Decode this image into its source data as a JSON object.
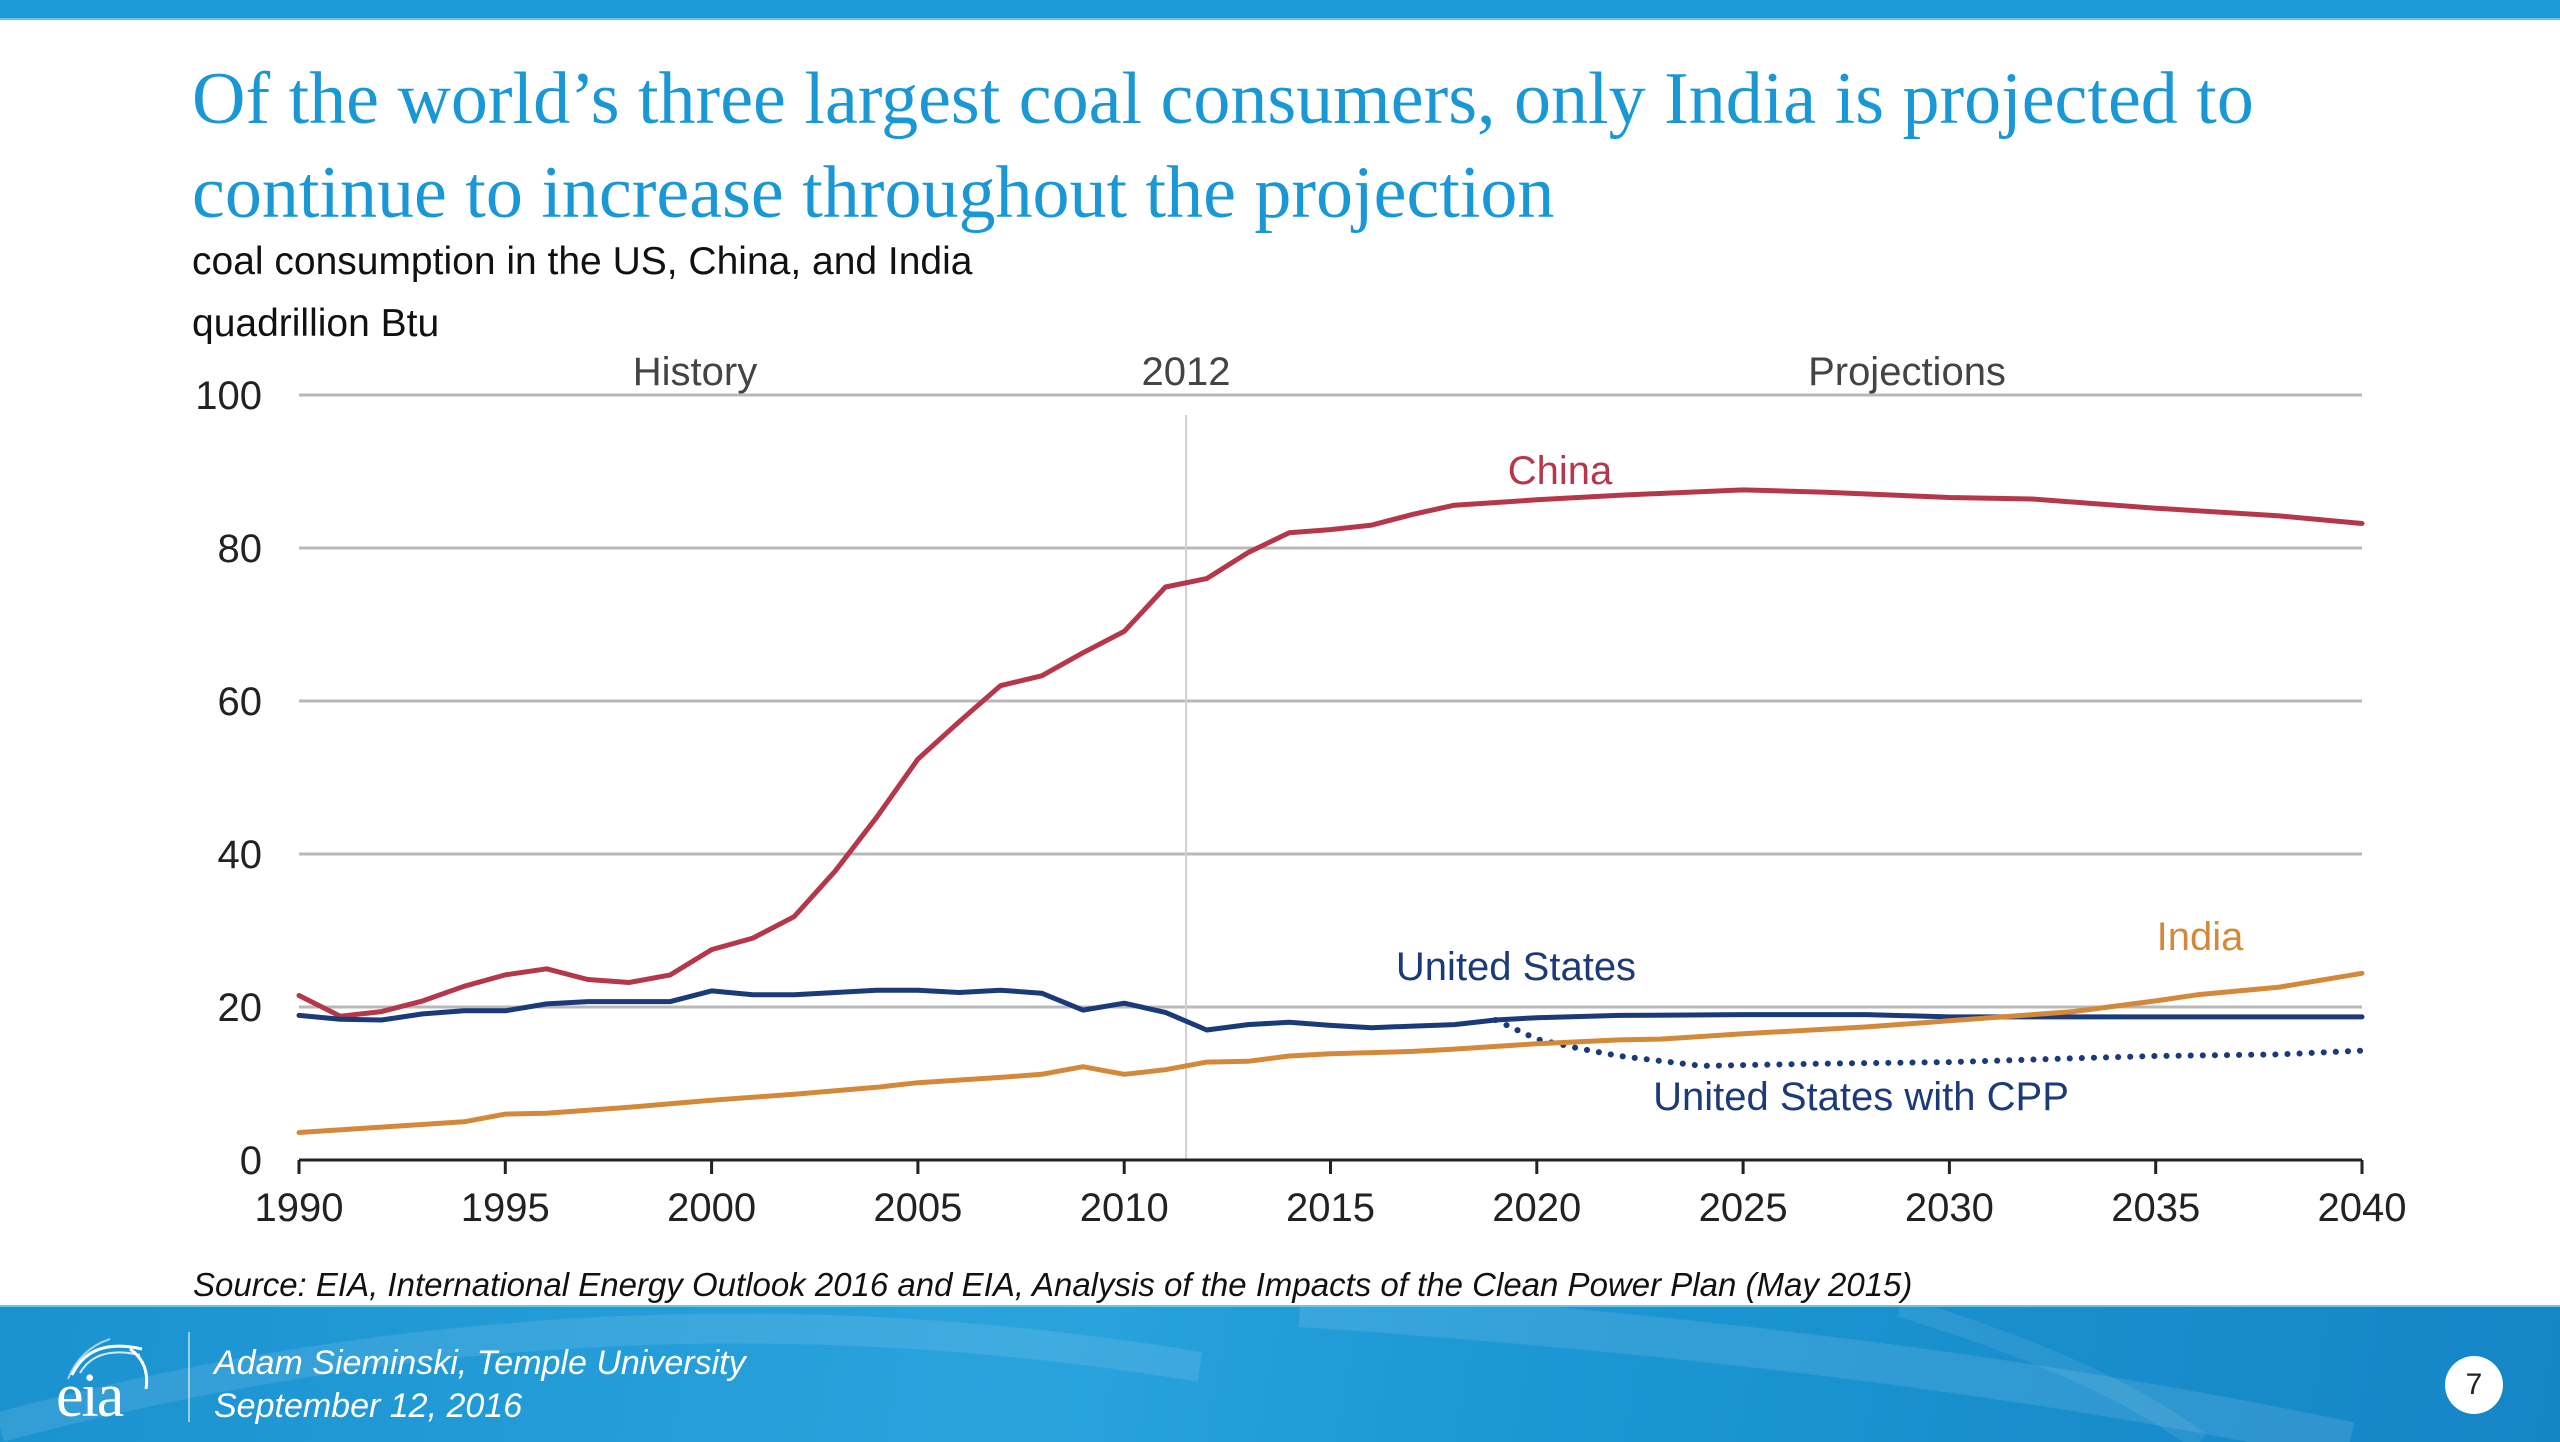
{
  "slide": {
    "title": "Of the world’s three largest coal consumers, only India is projected to continue to increase throughout the projection",
    "subtitle": "coal consumption in the US, China, and India",
    "units": "quadrillion Btu",
    "source": "Source:  EIA, International Energy Outlook 2016 and EIA, Analysis of the Impacts of the Clean Power Plan (May 2015)",
    "footer": {
      "logo_text": "eia",
      "presenter": "Adam Sieminski, Temple University",
      "date": "September 12, 2016",
      "page_number": "7"
    },
    "colors": {
      "accent": "#1a97d5",
      "china": "#b5384a",
      "united_states": "#1b3a7a",
      "india": "#d4893a"
    }
  },
  "chart_data": {
    "type": "line",
    "title": "coal consumption in the US, China, and India",
    "ylabel": "quadrillion Btu",
    "xlabel": "",
    "xlim": [
      1990,
      2040
    ],
    "ylim": [
      0,
      100
    ],
    "x_ticks": [
      "1990",
      "1995",
      "2000",
      "2005",
      "2010",
      "2015",
      "2020",
      "2025",
      "2030",
      "2035",
      "2040"
    ],
    "y_ticks": [
      "0",
      "20",
      "40",
      "60",
      "80",
      "100"
    ],
    "grid": "horizontal",
    "divider": {
      "year": 2011.5,
      "label": "2012"
    },
    "region_labels": {
      "history": "History",
      "projections": "Projections"
    },
    "series": [
      {
        "name": "China",
        "style": "solid",
        "points": [
          [
            1990,
            21.5
          ],
          [
            1991,
            18.8
          ],
          [
            1992,
            19.4
          ],
          [
            1993,
            20.8
          ],
          [
            1994,
            22.7
          ],
          [
            1995,
            24.2
          ],
          [
            1996,
            25.0
          ],
          [
            1997,
            23.6
          ],
          [
            1998,
            23.2
          ],
          [
            1999,
            24.2
          ],
          [
            2000,
            27.5
          ],
          [
            2001,
            29.0
          ],
          [
            2002,
            31.8
          ],
          [
            2003,
            37.8
          ],
          [
            2004,
            44.8
          ],
          [
            2005,
            52.4
          ],
          [
            2006,
            57.3
          ],
          [
            2007,
            62.0
          ],
          [
            2008,
            63.3
          ],
          [
            2009,
            66.3
          ],
          [
            2010,
            69.1
          ],
          [
            2011,
            74.9
          ],
          [
            2012,
            76.0
          ],
          [
            2013,
            79.4
          ],
          [
            2014,
            82.0
          ],
          [
            2015,
            82.4
          ],
          [
            2016,
            83.0
          ],
          [
            2017,
            84.4
          ],
          [
            2018,
            85.6
          ],
          [
            2020,
            86.3
          ],
          [
            2022,
            86.9
          ],
          [
            2025,
            87.6
          ],
          [
            2027,
            87.3
          ],
          [
            2030,
            86.6
          ],
          [
            2032,
            86.4
          ],
          [
            2035,
            85.2
          ],
          [
            2038,
            84.2
          ],
          [
            2040,
            83.2
          ]
        ]
      },
      {
        "name": "United States",
        "style": "solid",
        "points": [
          [
            1990,
            18.9
          ],
          [
            1991,
            18.4
          ],
          [
            1992,
            18.3
          ],
          [
            1993,
            19.1
          ],
          [
            1994,
            19.5
          ],
          [
            1995,
            19.5
          ],
          [
            1996,
            20.4
          ],
          [
            1997,
            20.7
          ],
          [
            1998,
            20.7
          ],
          [
            1999,
            20.7
          ],
          [
            2000,
            22.1
          ],
          [
            2001,
            21.6
          ],
          [
            2002,
            21.6
          ],
          [
            2003,
            21.9
          ],
          [
            2004,
            22.2
          ],
          [
            2005,
            22.2
          ],
          [
            2006,
            21.9
          ],
          [
            2007,
            22.2
          ],
          [
            2008,
            21.8
          ],
          [
            2009,
            19.6
          ],
          [
            2010,
            20.5
          ],
          [
            2011,
            19.3
          ],
          [
            2012,
            17.0
          ],
          [
            2013,
            17.7
          ],
          [
            2014,
            18.0
          ],
          [
            2015,
            17.6
          ],
          [
            2016,
            17.3
          ],
          [
            2017,
            17.5
          ],
          [
            2018,
            17.7
          ],
          [
            2019,
            18.3
          ],
          [
            2020,
            18.6
          ],
          [
            2022,
            18.9
          ],
          [
            2025,
            19.0
          ],
          [
            2028,
            19.0
          ],
          [
            2030,
            18.7
          ],
          [
            2035,
            18.7
          ],
          [
            2040,
            18.7
          ]
        ]
      },
      {
        "name": "United States with CPP",
        "style": "dotted",
        "points": [
          [
            2019,
            18.3
          ],
          [
            2020,
            15.8
          ],
          [
            2021,
            14.6
          ],
          [
            2022,
            13.6
          ],
          [
            2024,
            12.3
          ],
          [
            2025,
            12.4
          ],
          [
            2027,
            12.6
          ],
          [
            2030,
            12.8
          ],
          [
            2033,
            13.3
          ],
          [
            2035,
            13.6
          ],
          [
            2038,
            13.8
          ],
          [
            2040,
            14.3
          ]
        ]
      },
      {
        "name": "India",
        "style": "solid",
        "points": [
          [
            1990,
            3.6
          ],
          [
            1992,
            4.3
          ],
          [
            1994,
            5.0
          ],
          [
            1995,
            6.0
          ],
          [
            1996,
            6.1
          ],
          [
            1998,
            6.9
          ],
          [
            2000,
            7.8
          ],
          [
            2002,
            8.6
          ],
          [
            2004,
            9.5
          ],
          [
            2005,
            10.1
          ],
          [
            2007,
            10.8
          ],
          [
            2008,
            11.2
          ],
          [
            2009,
            12.2
          ],
          [
            2010,
            11.2
          ],
          [
            2011,
            11.8
          ],
          [
            2012,
            12.8
          ],
          [
            2013,
            12.9
          ],
          [
            2014,
            13.6
          ],
          [
            2015,
            13.9
          ],
          [
            2017,
            14.2
          ],
          [
            2018,
            14.5
          ],
          [
            2020,
            15.2
          ],
          [
            2022,
            15.7
          ],
          [
            2023,
            15.8
          ],
          [
            2025,
            16.5
          ],
          [
            2028,
            17.4
          ],
          [
            2030,
            18.2
          ],
          [
            2033,
            19.4
          ],
          [
            2035,
            20.8
          ],
          [
            2036,
            21.6
          ],
          [
            2038,
            22.6
          ],
          [
            2040,
            24.4
          ]
        ]
      }
    ],
    "annotations": [
      {
        "text": "China",
        "series": "China"
      },
      {
        "text": "United States",
        "series": "United States"
      },
      {
        "text": "United States with CPP",
        "series": "United States with CPP"
      },
      {
        "text": "India",
        "series": "India"
      }
    ]
  }
}
